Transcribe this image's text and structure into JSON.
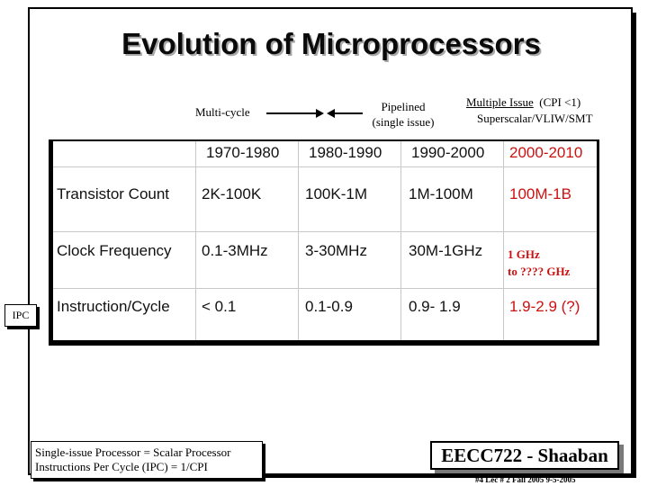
{
  "slide": {
    "title": "Evolution of Microprocessors"
  },
  "progression": {
    "multicycle": "Multi-cycle",
    "pipelined_line1": "Pipelined",
    "pipelined_line2": "(single issue)",
    "multiple_issue": "Multiple Issue",
    "cpi_note": "(CPI <1)",
    "superscalar": "Superscalar/VLIW/SMT"
  },
  "table": {
    "headers": [
      "",
      "1970-1980",
      "1980-1990",
      "1990-2000",
      "2000-2010"
    ],
    "rows": [
      {
        "label": "Transistor Count",
        "values": [
          "2K-100K",
          "100K-1M",
          "1M-100M",
          "100M-1B"
        ]
      },
      {
        "label": "Clock Frequency",
        "values": [
          "0.1-3MHz",
          "3-30MHz",
          "30M-1GHz",
          "1 GHz"
        ],
        "extra": "to ???? GHz"
      },
      {
        "label": "Instruction/Cycle",
        "values": [
          "< 0.1",
          "0.1-0.9",
          "0.9- 1.9",
          "1.9-2.9 (?)"
        ]
      }
    ],
    "highlight_color": "#cc1111"
  },
  "side_label": "IPC",
  "footnote": {
    "line1": "Single-issue Processor = Scalar Processor",
    "line2": "Instructions Per Cycle (IPC) = 1/CPI"
  },
  "branding": {
    "course": "EECC722 - Shaaban",
    "footer": "#4   Lec # 2   Fall 2005  9-5-2005"
  }
}
